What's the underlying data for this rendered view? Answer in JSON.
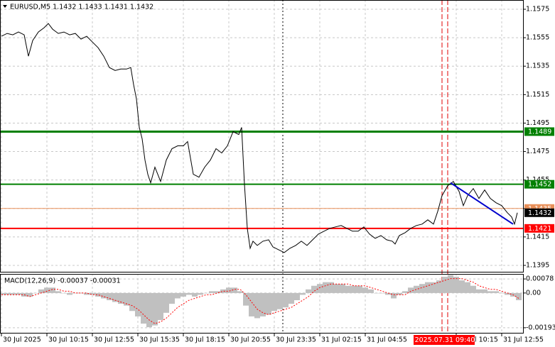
{
  "chart_data": [
    {
      "type": "line",
      "title": "EURUSD,M5  1.1432 1.1433 1.1431 1.1432",
      "color": "#000000",
      "x": [
        0,
        4,
        8,
        12,
        16,
        19,
        22,
        26,
        30,
        33,
        36,
        40,
        44,
        48,
        52,
        56,
        60,
        64,
        68,
        72,
        76,
        80,
        84,
        88,
        91,
        93,
        95,
        97,
        99,
        101,
        103,
        105,
        108,
        112,
        116,
        120,
        124,
        128,
        131,
        135,
        139,
        143,
        147,
        151,
        155,
        159,
        163,
        167,
        169,
        171,
        173,
        175,
        177,
        180,
        184,
        188,
        191,
        195,
        199,
        203,
        207,
        211,
        215,
        219,
        223,
        227,
        231,
        235,
        239,
        243,
        247,
        251,
        255,
        259,
        263,
        267,
        271,
        275,
        277,
        280,
        284,
        288,
        292,
        296,
        300,
        304,
        307,
        310,
        314,
        318,
        322,
        325,
        328,
        332,
        336,
        340,
        344,
        348,
        352,
        356,
        359,
        361,
        363
      ],
      "values": [
        1.1556,
        1.1558,
        1.1557,
        1.1559,
        1.1557,
        1.1542,
        1.1553,
        1.1559,
        1.1562,
        1.1565,
        1.1561,
        1.1558,
        1.1559,
        1.1557,
        1.1558,
        1.1554,
        1.1556,
        1.1552,
        1.1548,
        1.1542,
        1.1534,
        1.1532,
        1.1533,
        1.1533,
        1.1534,
        1.1522,
        1.1512,
        1.1492,
        1.1484,
        1.1469,
        1.1459,
        1.1453,
        1.1464,
        1.1454,
        1.1469,
        1.1477,
        1.1479,
        1.1479,
        1.1482,
        1.1459,
        1.1457,
        1.1464,
        1.1469,
        1.1477,
        1.1474,
        1.1479,
        1.1489,
        1.1487,
        1.1492,
        1.1452,
        1.1421,
        1.1407,
        1.1412,
        1.1409,
        1.1412,
        1.1413,
        1.1408,
        1.1406,
        1.1404,
        1.1407,
        1.1409,
        1.1412,
        1.1409,
        1.1413,
        1.1417,
        1.1419,
        1.1421,
        1.1422,
        1.1423,
        1.1421,
        1.1419,
        1.1419,
        1.1422,
        1.1417,
        1.1414,
        1.1416,
        1.1413,
        1.1412,
        1.141,
        1.1416,
        1.1418,
        1.1421,
        1.1423,
        1.1424,
        1.1427,
        1.1424,
        1.1433,
        1.1444,
        1.1451,
        1.1454,
        1.1447,
        1.1437,
        1.1444,
        1.1449,
        1.1442,
        1.1448,
        1.1442,
        1.1439,
        1.1437,
        1.1432,
        1.1429,
        1.1424,
        1.1432
      ],
      "xlim": [
        -1,
        367.5
      ],
      "xticks": [
        {
          "value": 0,
          "label": "30 Jul 2025"
        },
        {
          "value": 32,
          "label": "30 Jul 10:15"
        },
        {
          "value": 64,
          "label": "30 Jul 12:55"
        },
        {
          "value": 96,
          "label": "30 Jul 15:35"
        },
        {
          "value": 128,
          "label": "30 Jul 18:15"
        },
        {
          "value": 160,
          "label": "30 Jul 20:55"
        },
        {
          "value": 192,
          "label": "30 Jul 23:35"
        },
        {
          "value": 224,
          "label": "31 Jul 02:15"
        },
        {
          "value": 256,
          "label": "31 Jul 04:55"
        },
        {
          "value": 320,
          "label": "31 Jul 10:15"
        },
        {
          "value": 352,
          "label": "31 Jul 12:55"
        }
      ],
      "ylim": [
        1.139,
        1.15815
      ],
      "yticks": [
        1.1575,
        1.1555,
        1.1535,
        1.1515,
        1.1495,
        1.1475,
        1.1455,
        1.1435,
        1.1415,
        1.1395
      ],
      "grid": true,
      "levels": [
        {
          "value": 1.1435,
          "color": "#e8905a",
          "width": 1
        },
        {
          "value": 1.1489,
          "color": "#008000",
          "width": 3
        },
        {
          "value": 1.1452,
          "color": "#008000",
          "width": 2
        },
        {
          "value": 1.1421,
          "color": "#ff0000",
          "width": 2
        }
      ],
      "last_price": {
        "value": 1.1432,
        "color": "#000000"
      },
      "trendline": {
        "x": [
          316,
          360
        ],
        "values": [
          1.1453,
          1.1424
        ],
        "color": "#0000cc"
      },
      "vlines": [
        {
          "x": 198,
          "color": "#000000",
          "dash": "2,3"
        },
        {
          "x": 310,
          "color": "#e00000",
          "dash": "7,3"
        },
        {
          "x": 314,
          "color": "#e00000",
          "dash": "7,3"
        }
      ],
      "crosshair": {
        "x": 312,
        "label": "2025.07.31 09:40",
        "color": "#ff0000"
      }
    },
    {
      "type": "macd",
      "title": "MACD(12,26,9) -0.00037 -0.00031",
      "x": [
        0,
        4,
        8,
        12,
        16,
        20,
        24,
        28,
        32,
        36,
        40,
        44,
        48,
        52,
        56,
        60,
        64,
        68,
        72,
        76,
        80,
        84,
        88,
        92,
        96,
        100,
        104,
        108,
        112,
        116,
        120,
        124,
        128,
        132,
        136,
        140,
        144,
        148,
        152,
        156,
        160,
        164,
        168,
        172,
        176,
        180,
        184,
        188,
        192,
        196,
        200,
        204,
        208,
        212,
        216,
        220,
        224,
        228,
        232,
        236,
        240,
        244,
        248,
        252,
        256,
        260,
        264,
        268,
        272,
        276,
        280,
        284,
        288,
        292,
        296,
        300,
        304,
        308,
        312,
        316,
        320,
        324,
        328,
        332,
        336,
        340,
        344,
        348,
        352,
        356,
        360,
        364
      ],
      "histogram": {
        "color": "#c0c0c0",
        "values": [
          -0.0001,
          -0.0001,
          -0.0001,
          -0.0001,
          -0.0002,
          -0.0002,
          0.0,
          0.0002,
          0.0003,
          0.0003,
          0.0001,
          0.0,
          -0.0001,
          0.0,
          0.0,
          -0.0001,
          -0.0001,
          -0.0002,
          -0.0003,
          -0.0004,
          -0.0005,
          -0.0006,
          -0.0007,
          -0.001,
          -0.0013,
          -0.0017,
          -0.0019,
          -0.0018,
          -0.0015,
          -0.0011,
          -0.0006,
          -0.0003,
          -0.0002,
          -0.0001,
          -0.0002,
          -0.0001,
          0.0,
          0.0001,
          0.0001,
          0.0002,
          0.0003,
          0.0003,
          0.0001,
          -0.0007,
          -0.0013,
          -0.0014,
          -0.0013,
          -0.0012,
          -0.001,
          -0.0009,
          -0.0008,
          -0.0006,
          -0.0004,
          -0.0001,
          0.0002,
          0.0004,
          0.0005,
          0.0006,
          0.0006,
          0.0005,
          0.0005,
          0.0004,
          0.0004,
          0.0004,
          0.0003,
          0.0002,
          0.0,
          0.0,
          -0.0001,
          -0.0003,
          -0.0001,
          0.0001,
          0.0003,
          0.0004,
          0.0005,
          0.0006,
          0.0006,
          0.0007,
          0.0009,
          0.001,
          0.0009,
          0.0007,
          0.0006,
          0.0004,
          0.0002,
          0.0002,
          0.0001,
          0.0001,
          0.0,
          -0.0001,
          -0.0002,
          -0.0004
        ]
      },
      "signal": {
        "color": "#ff0000",
        "values": [
          -0.0001,
          -0.0001,
          -0.0001,
          -0.0001,
          -0.0001,
          -0.0002,
          -0.0001,
          0.0,
          0.0001,
          0.0002,
          0.0002,
          0.0001,
          0.0001,
          0.0,
          0.0,
          0.0,
          -0.0001,
          -0.0001,
          -0.0002,
          -0.0003,
          -0.0004,
          -0.0005,
          -0.0006,
          -0.0007,
          -0.0009,
          -0.0012,
          -0.0015,
          -0.0017,
          -0.0016,
          -0.0014,
          -0.0011,
          -0.0008,
          -0.0006,
          -0.0004,
          -0.0003,
          -0.0002,
          -0.0001,
          -0.0001,
          0.0,
          0.0001,
          0.0001,
          0.0002,
          0.0002,
          -0.0001,
          -0.0005,
          -0.0009,
          -0.0011,
          -0.0012,
          -0.0011,
          -0.001,
          -0.0009,
          -0.0008,
          -0.0006,
          -0.0004,
          -0.0002,
          0.0001,
          0.0003,
          0.0004,
          0.0005,
          0.0005,
          0.0005,
          0.0005,
          0.0004,
          0.0004,
          0.0004,
          0.0003,
          0.0002,
          0.0001,
          0.0,
          -0.0001,
          -0.0001,
          -0.0001,
          0.0001,
          0.0002,
          0.0003,
          0.0004,
          0.0005,
          0.0006,
          0.0007,
          0.0008,
          0.0008,
          0.0008,
          0.0007,
          0.0006,
          0.0004,
          0.0003,
          0.0002,
          0.0002,
          0.0001,
          0.0,
          -0.0001,
          -0.0003
        ]
      },
      "xlim": [
        -1,
        367.5
      ],
      "ylim": [
        -0.00225,
        0.00106
      ],
      "yticks": [
        0.00078,
        {
          "value": 0,
          "label": "0.00"
        },
        -0.00193
      ]
    }
  ]
}
